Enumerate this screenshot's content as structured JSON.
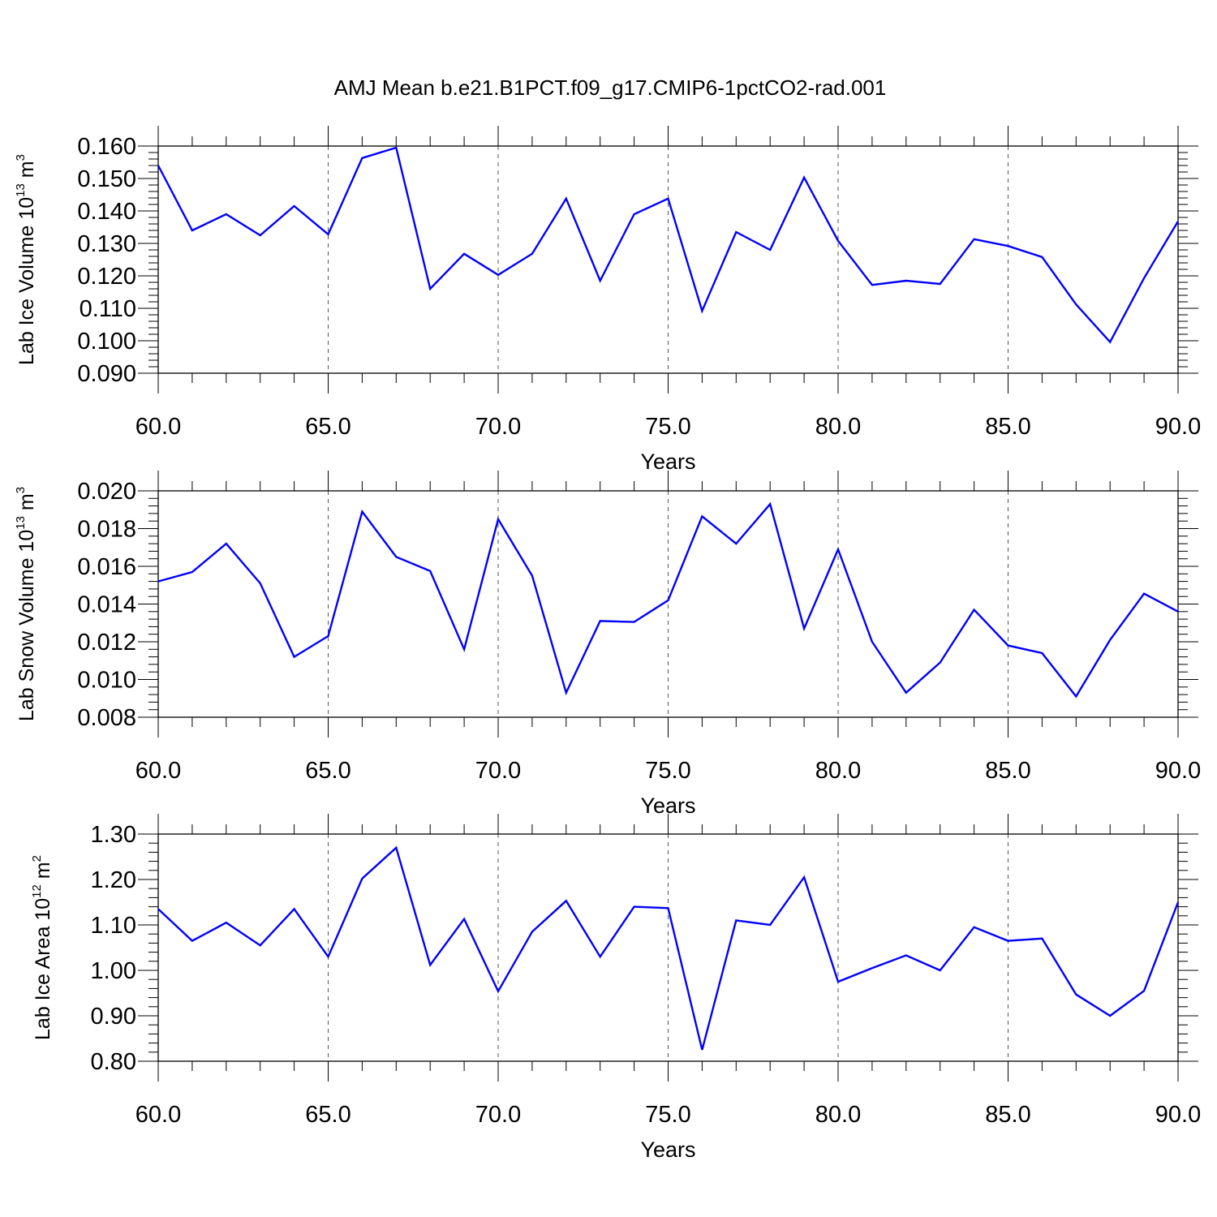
{
  "title": "AMJ Mean b.e21.B1PCT.f09_g17.CMIP6-1pctCO2-rad.001",
  "chart_data": [
    {
      "type": "line",
      "x": [
        60,
        61,
        62,
        63,
        64,
        65,
        66,
        67,
        68,
        69,
        70,
        71,
        72,
        73,
        74,
        75,
        76,
        77,
        78,
        79,
        80,
        81,
        82,
        83,
        84,
        85,
        86,
        87,
        88,
        89,
        90
      ],
      "series": [
        {
          "values": [
            0.154,
            0.134,
            0.139,
            0.1325,
            0.1415,
            0.1328,
            0.1563,
            0.1595,
            0.116,
            0.1268,
            0.1203,
            0.1268,
            0.1438,
            0.1185,
            0.139,
            0.1438,
            0.1092,
            0.1335,
            0.128,
            0.1503,
            0.1308,
            0.1172,
            0.1185,
            0.1175,
            0.1313,
            0.1292,
            0.1258,
            0.1112,
            0.0996,
            0.1193,
            0.1368
          ]
        }
      ],
      "xlabel": "Years",
      "ylabel": {
        "text": "Lab Ice Volume 10",
        "sup": "13",
        "unit": " m",
        "unit_sup": "3"
      },
      "xlim": [
        60,
        90
      ],
      "ylim": [
        0.09,
        0.16
      ],
      "xticks": [
        "60.0",
        "65.0",
        "70.0",
        "75.0",
        "80.0",
        "85.0",
        "90.0"
      ],
      "yticks": [
        "0.090",
        "0.100",
        "0.110",
        "0.120",
        "0.130",
        "0.140",
        "0.150",
        "0.160"
      ],
      "grid": "dashed vertical at major x ticks",
      "line_color": "#0000ff"
    },
    {
      "type": "line",
      "x": [
        60,
        61,
        62,
        63,
        64,
        65,
        66,
        67,
        68,
        69,
        70,
        71,
        72,
        73,
        74,
        75,
        76,
        77,
        78,
        79,
        80,
        81,
        82,
        83,
        84,
        85,
        86,
        87,
        88,
        89,
        90
      ],
      "series": [
        {
          "values": [
            0.0152,
            0.0157,
            0.0172,
            0.0151,
            0.0112,
            0.0123,
            0.0189,
            0.0165,
            0.01575,
            0.0116,
            0.0185,
            0.0155,
            0.0093,
            0.0131,
            0.01305,
            0.0142,
            0.01865,
            0.0172,
            0.0193,
            0.0127,
            0.0169,
            0.012,
            0.0093,
            0.0109,
            0.0137,
            0.0118,
            0.0114,
            0.0091,
            0.0121,
            0.01455,
            0.0136
          ]
        }
      ],
      "xlabel": "Years",
      "ylabel": {
        "text": "Lab Snow Volume 10",
        "sup": "13",
        "unit": " m",
        "unit_sup": "3"
      },
      "xlim": [
        60,
        90
      ],
      "ylim": [
        0.008,
        0.02
      ],
      "xticks": [
        "60.0",
        "65.0",
        "70.0",
        "75.0",
        "80.0",
        "85.0",
        "90.0"
      ],
      "yticks": [
        "0.008",
        "0.010",
        "0.012",
        "0.014",
        "0.016",
        "0.018",
        "0.020"
      ],
      "grid": "dashed vertical at major x ticks",
      "line_color": "#0000ff"
    },
    {
      "type": "line",
      "x": [
        60,
        61,
        62,
        63,
        64,
        65,
        66,
        67,
        68,
        69,
        70,
        71,
        72,
        73,
        74,
        75,
        76,
        77,
        78,
        79,
        80,
        81,
        82,
        83,
        84,
        85,
        86,
        87,
        88,
        89,
        90
      ],
      "series": [
        {
          "values": [
            1.135,
            1.065,
            1.105,
            1.055,
            1.135,
            1.03,
            1.202,
            1.27,
            1.012,
            1.113,
            0.954,
            1.085,
            1.153,
            1.03,
            1.14,
            1.137,
            0.825,
            1.11,
            1.1,
            1.205,
            0.975,
            1.005,
            1.033,
            1.0,
            1.095,
            1.065,
            1.07,
            0.947,
            0.9,
            0.955,
            1.15
          ]
        }
      ],
      "xlabel": "Years",
      "ylabel": {
        "text": "Lab Ice Area 10",
        "sup": "12",
        "unit": " m",
        "unit_sup": "2"
      },
      "xlim": [
        60,
        90
      ],
      "ylim": [
        0.8,
        1.3
      ],
      "xticks": [
        "60.0",
        "65.0",
        "70.0",
        "75.0",
        "80.0",
        "85.0",
        "90.0"
      ],
      "yticks": [
        "0.80",
        "0.90",
        "1.00",
        "1.10",
        "1.20",
        "1.30"
      ],
      "grid": "dashed vertical at major x ticks",
      "line_color": "#0000ff"
    }
  ]
}
